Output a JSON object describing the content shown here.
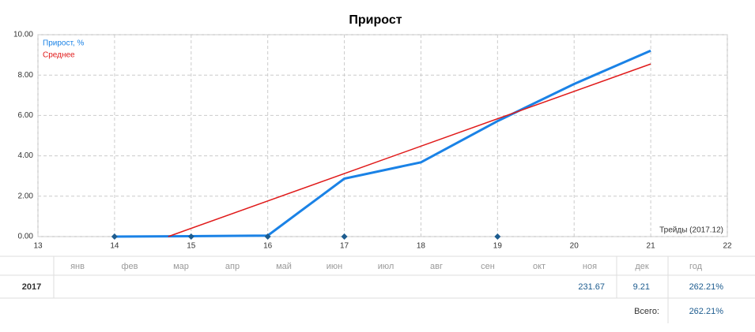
{
  "chart_data": {
    "type": "line",
    "title": "Прирост",
    "x": [
      14,
      15,
      16,
      17,
      18,
      19,
      20,
      21
    ],
    "series": [
      {
        "name": "Прирост, %",
        "color": "#1a82e6",
        "values": [
          0,
          0.02,
          0.05,
          2.87,
          3.68,
          5.72,
          7.56,
          9.21
        ]
      },
      {
        "name": "Среднее",
        "color": "#e01a1a",
        "x": [
          14.7,
          21
        ],
        "values": [
          0,
          8.55
        ]
      }
    ],
    "markers": {
      "color": "#1d5c8f",
      "x": [
        14,
        15,
        16,
        17,
        19
      ],
      "values": [
        0,
        0,
        0,
        0,
        0
      ]
    },
    "annotation": "Трейды (2017.12)",
    "xlim": [
      13,
      22
    ],
    "xticks": [
      13,
      14,
      15,
      16,
      17,
      18,
      19,
      20,
      21,
      22
    ],
    "ylim": [
      0,
      10
    ],
    "yticks": [
      {
        "value": 0,
        "label": "0.00"
      },
      {
        "value": 2,
        "label": "2.00"
      },
      {
        "value": 4,
        "label": "4.00"
      },
      {
        "value": 6,
        "label": "6.00"
      },
      {
        "value": 8,
        "label": "8.00"
      },
      {
        "value": 10,
        "label": "10.00"
      }
    ],
    "grid": true,
    "legend": "top-left"
  },
  "table": {
    "headers": [
      "янв",
      "фев",
      "мар",
      "апр",
      "май",
      "июн",
      "июл",
      "авг",
      "сен",
      "окт",
      "ноя",
      "дек",
      "год"
    ],
    "rows": [
      {
        "year": "2017",
        "cells": [
          null,
          null,
          null,
          null,
          null,
          null,
          null,
          null,
          null,
          null,
          "231.67",
          "9.21",
          "262.21%"
        ]
      }
    ],
    "total_label": "Всего:",
    "total_value": "262.21%"
  }
}
